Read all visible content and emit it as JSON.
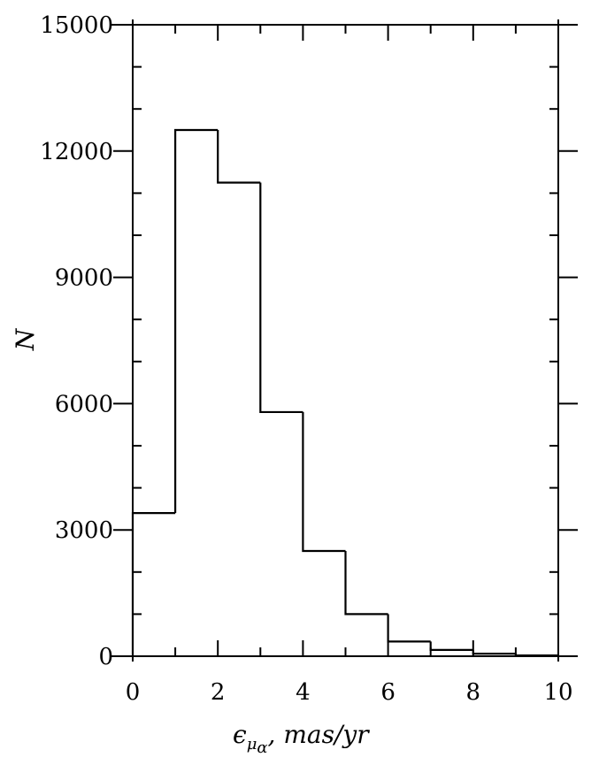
{
  "chart_data": {
    "type": "bar",
    "style": "step-histogram",
    "bin_edges": [
      0,
      1,
      2,
      3,
      4,
      5,
      6,
      7,
      8,
      9,
      10
    ],
    "values": [
      3400,
      12500,
      11250,
      5800,
      2500,
      1000,
      350,
      150,
      60,
      20
    ],
    "xlabel": {
      "epsilon": "ϵ",
      "mu": "μ",
      "alpha": "α",
      "suffix": ", mas/yr"
    },
    "ylabel": "N",
    "xlim": [
      0,
      10
    ],
    "ylim": [
      0,
      15000
    ],
    "x_ticks": [
      "0",
      "2",
      "4",
      "6",
      "8",
      "10"
    ],
    "y_ticks": [
      "0",
      "3000",
      "6000",
      "9000",
      "12000",
      "15000"
    ],
    "x_minor_step": 1,
    "y_minor_step": 1000,
    "grid": false,
    "line_color": "#000000"
  }
}
